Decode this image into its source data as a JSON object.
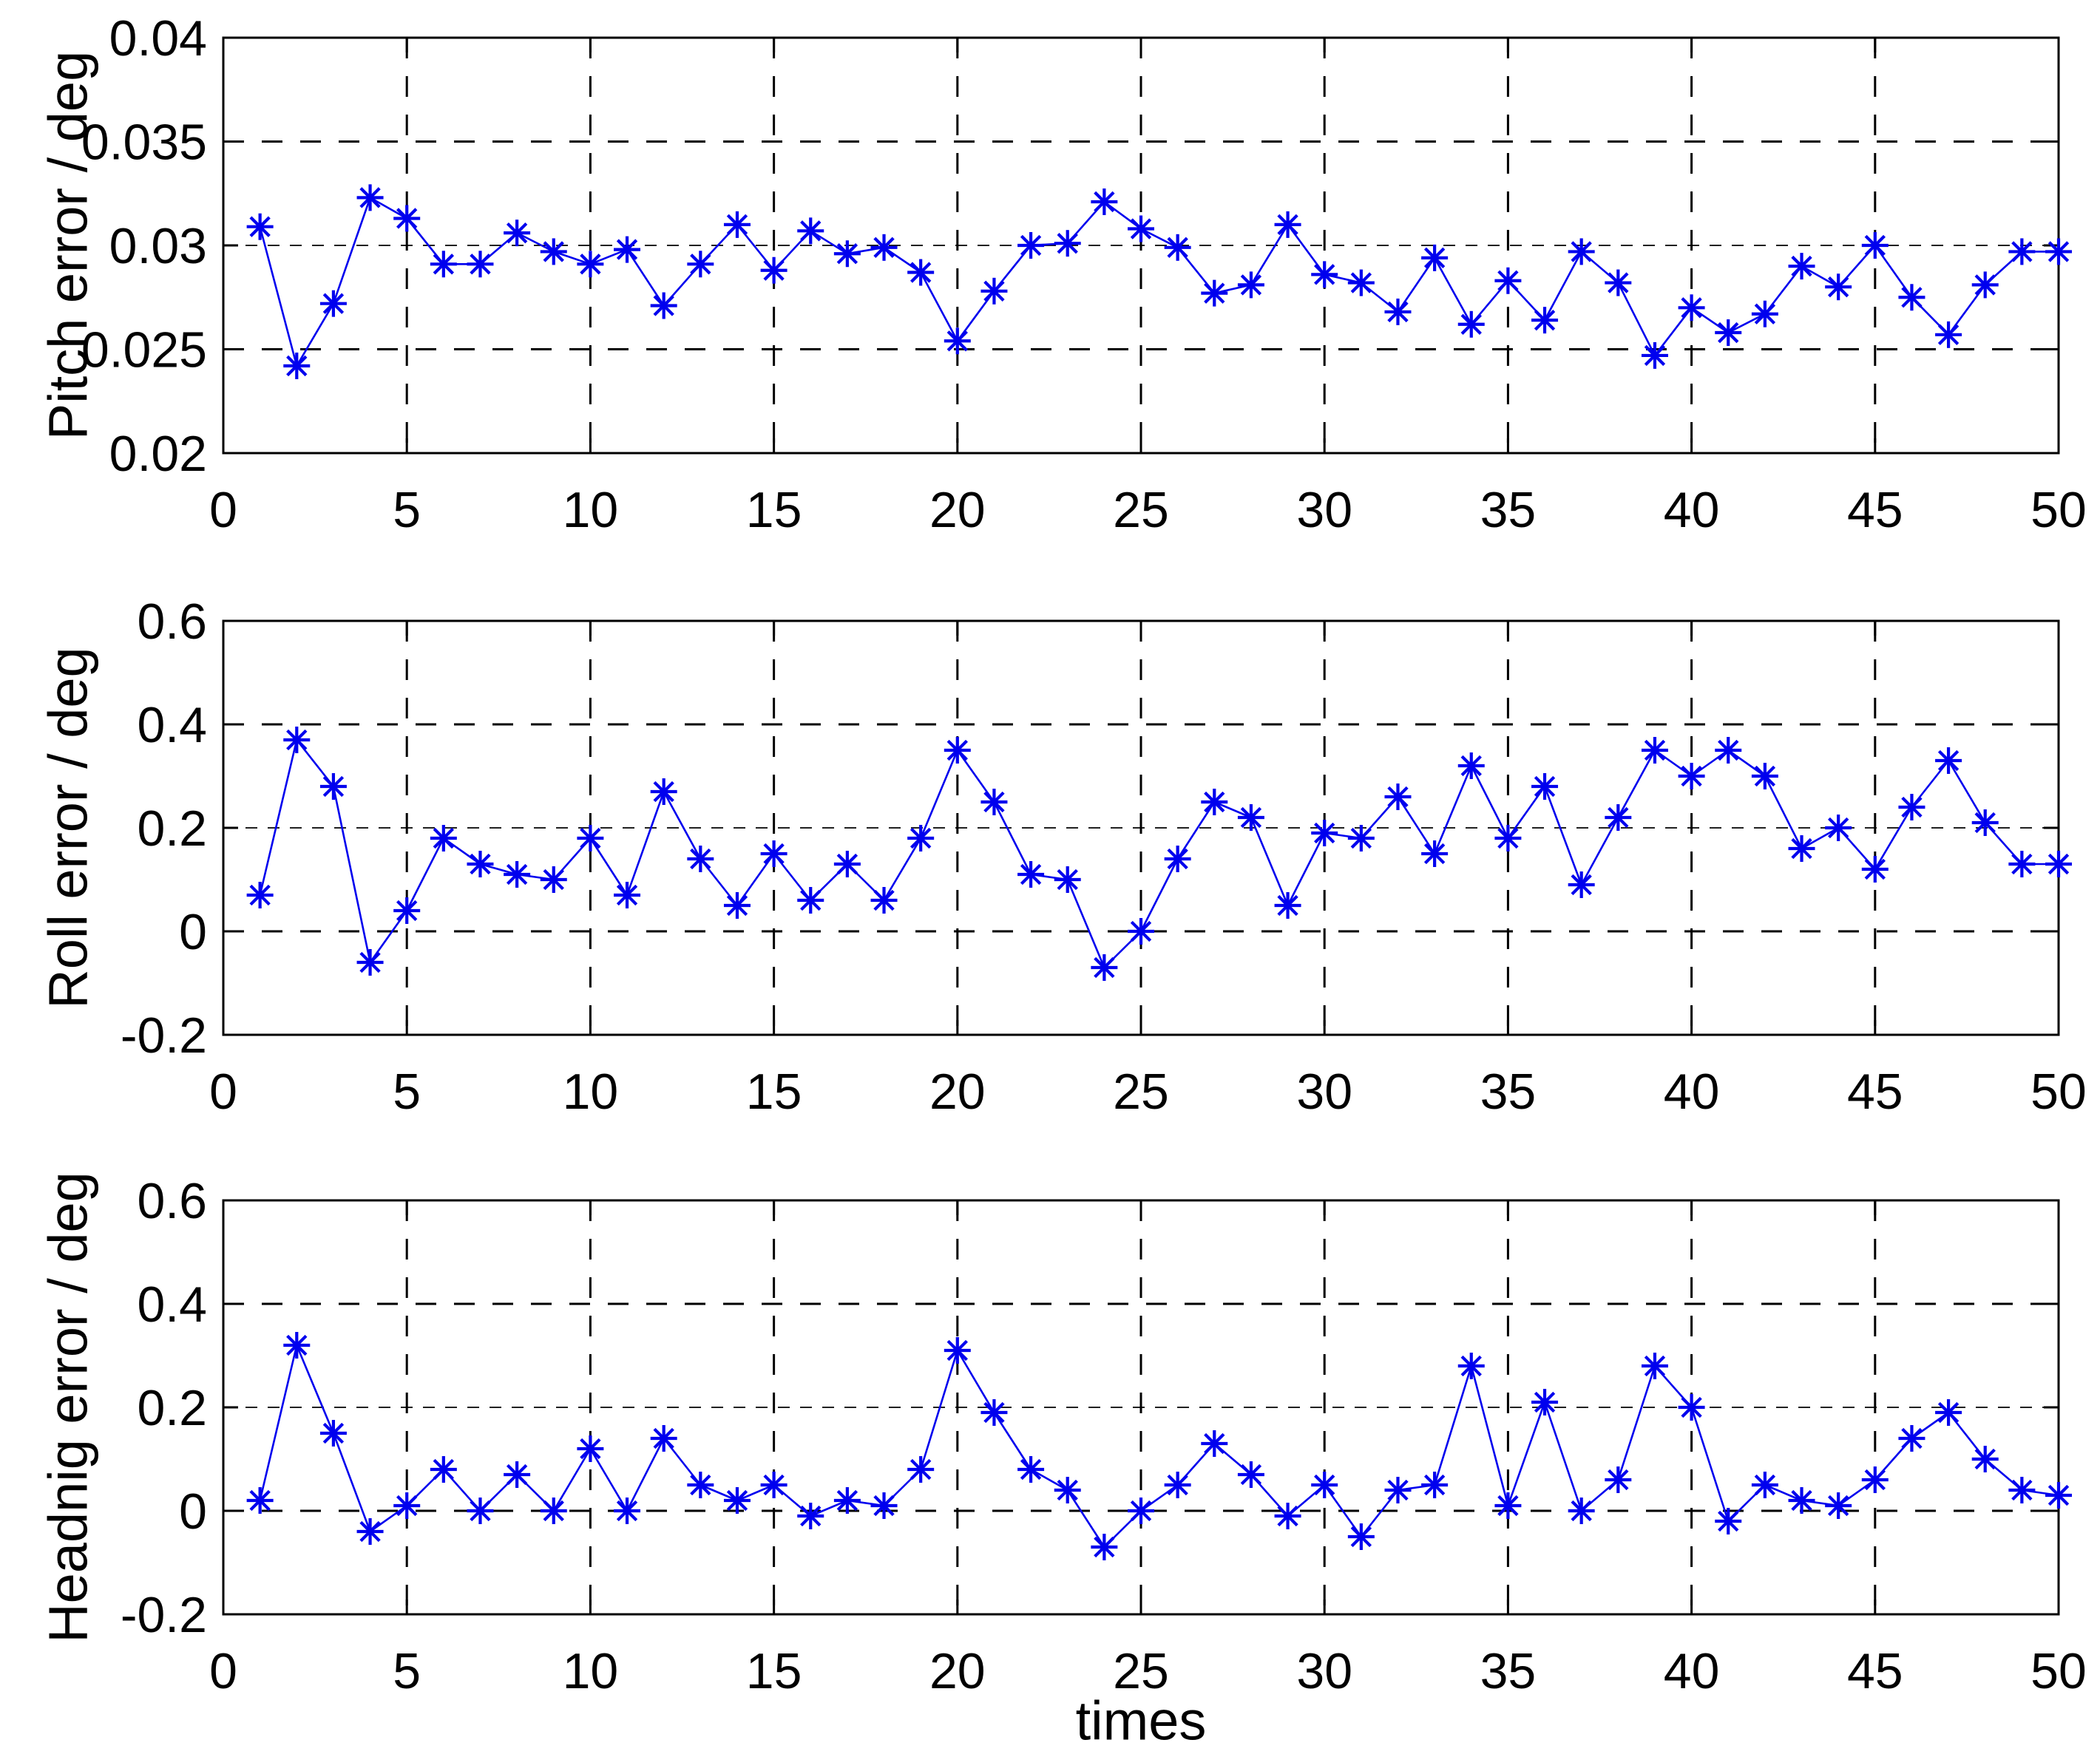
{
  "figure": {
    "background": "#ffffff",
    "axis_color": "#000000",
    "grid_color": "#000000",
    "series_color": "#0000ee"
  },
  "chart_data": [
    {
      "type": "line",
      "title": "",
      "ylabel": "Pitch error / deg",
      "xlabel": "",
      "marker": "asterisk",
      "grid": true,
      "legend": null,
      "xlim": [
        0,
        50
      ],
      "ylim": [
        0.02,
        0.04
      ],
      "xticks": [
        0,
        5,
        10,
        15,
        20,
        25,
        30,
        35,
        40,
        45,
        50
      ],
      "xtick_labels": [
        "0",
        "5",
        "10",
        "15",
        "20",
        "25",
        "30",
        "35",
        "40",
        "45",
        "50"
      ],
      "yticks": [
        0.02,
        0.025,
        0.03,
        0.035,
        0.04
      ],
      "ytick_labels": [
        "0.02",
        "0.025",
        "0.03",
        "0.035",
        "0.04"
      ],
      "x": [
        1,
        2,
        3,
        4,
        5,
        6,
        7,
        8,
        9,
        10,
        11,
        12,
        13,
        14,
        15,
        16,
        17,
        18,
        19,
        20,
        21,
        22,
        23,
        24,
        25,
        26,
        27,
        28,
        29,
        30,
        31,
        32,
        33,
        34,
        35,
        36,
        37,
        38,
        39,
        40,
        41,
        42,
        43,
        44,
        45,
        46,
        47,
        48,
        49,
        50
      ],
      "values": [
        0.0309,
        0.0242,
        0.0272,
        0.0323,
        0.0313,
        0.0291,
        0.0291,
        0.0306,
        0.0297,
        0.0291,
        0.0298,
        0.0271,
        0.0291,
        0.031,
        0.0288,
        0.0307,
        0.0296,
        0.0299,
        0.0287,
        0.0254,
        0.0278,
        0.03,
        0.0301,
        0.0321,
        0.0308,
        0.0299,
        0.0277,
        0.0281,
        0.031,
        0.0286,
        0.0282,
        0.0268,
        0.0294,
        0.0262,
        0.0283,
        0.0264,
        0.0297,
        0.0282,
        0.0247,
        0.027,
        0.0258,
        0.0267,
        0.029,
        0.028,
        0.03,
        0.0275,
        0.0257,
        0.0281,
        0.0297,
        0.0297
      ]
    },
    {
      "type": "line",
      "title": "",
      "ylabel": "Roll error / deg",
      "xlabel": "",
      "marker": "asterisk",
      "grid": true,
      "legend": null,
      "xlim": [
        0,
        50
      ],
      "ylim": [
        -0.2,
        0.6
      ],
      "xticks": [
        0,
        5,
        10,
        15,
        20,
        25,
        30,
        35,
        40,
        45,
        50
      ],
      "xtick_labels": [
        "0",
        "5",
        "10",
        "15",
        "20",
        "25",
        "30",
        "35",
        "40",
        "45",
        "50"
      ],
      "yticks": [
        -0.2,
        0,
        0.2,
        0.4,
        0.6
      ],
      "ytick_labels": [
        "-0.2",
        "0",
        "0.2",
        "0.4",
        "0.6"
      ],
      "x": [
        1,
        2,
        3,
        4,
        5,
        6,
        7,
        8,
        9,
        10,
        11,
        12,
        13,
        14,
        15,
        16,
        17,
        18,
        19,
        20,
        21,
        22,
        23,
        24,
        25,
        26,
        27,
        28,
        29,
        30,
        31,
        32,
        33,
        34,
        35,
        36,
        37,
        38,
        39,
        40,
        41,
        42,
        43,
        44,
        45,
        46,
        47,
        48,
        49,
        50
      ],
      "values": [
        0.07,
        0.37,
        0.28,
        -0.06,
        0.04,
        0.18,
        0.13,
        0.11,
        0.1,
        0.18,
        0.07,
        0.27,
        0.14,
        0.05,
        0.15,
        0.06,
        0.13,
        0.06,
        0.18,
        0.35,
        0.25,
        0.11,
        0.1,
        -0.07,
        0.0,
        0.14,
        0.25,
        0.22,
        0.05,
        0.19,
        0.18,
        0.26,
        0.15,
        0.32,
        0.18,
        0.28,
        0.09,
        0.22,
        0.35,
        0.3,
        0.35,
        0.3,
        0.16,
        0.2,
        0.12,
        0.24,
        0.33,
        0.21,
        0.13,
        0.13
      ]
    },
    {
      "type": "line",
      "title": "",
      "ylabel": "Headnig error / deg",
      "xlabel": "times",
      "marker": "asterisk",
      "grid": true,
      "legend": null,
      "xlim": [
        0,
        50
      ],
      "ylim": [
        -0.2,
        0.6
      ],
      "xticks": [
        0,
        5,
        10,
        15,
        20,
        25,
        30,
        35,
        40,
        45,
        50
      ],
      "xtick_labels": [
        "0",
        "5",
        "10",
        "15",
        "20",
        "25",
        "30",
        "35",
        "40",
        "45",
        "50"
      ],
      "yticks": [
        -0.2,
        0,
        0.2,
        0.4,
        0.6
      ],
      "ytick_labels": [
        "-0.2",
        "0",
        "0.2",
        "0.4",
        "0.6"
      ],
      "x": [
        1,
        2,
        3,
        4,
        5,
        6,
        7,
        8,
        9,
        10,
        11,
        12,
        13,
        14,
        15,
        16,
        17,
        18,
        19,
        20,
        21,
        22,
        23,
        24,
        25,
        26,
        27,
        28,
        29,
        30,
        31,
        32,
        33,
        34,
        35,
        36,
        37,
        38,
        39,
        40,
        41,
        42,
        43,
        44,
        45,
        46,
        47,
        48,
        49,
        50
      ],
      "values": [
        0.02,
        0.32,
        0.15,
        -0.04,
        0.01,
        0.08,
        0.0,
        0.07,
        0.0,
        0.12,
        0.0,
        0.14,
        0.05,
        0.02,
        0.05,
        -0.01,
        0.02,
        0.01,
        0.08,
        0.31,
        0.19,
        0.08,
        0.04,
        -0.07,
        0.0,
        0.05,
        0.13,
        0.07,
        -0.01,
        0.05,
        -0.05,
        0.04,
        0.05,
        0.28,
        0.01,
        0.21,
        0.0,
        0.06,
        0.28,
        0.2,
        -0.02,
        0.05,
        0.02,
        0.01,
        0.06,
        0.14,
        0.19,
        0.1,
        0.04,
        0.03
      ]
    }
  ]
}
